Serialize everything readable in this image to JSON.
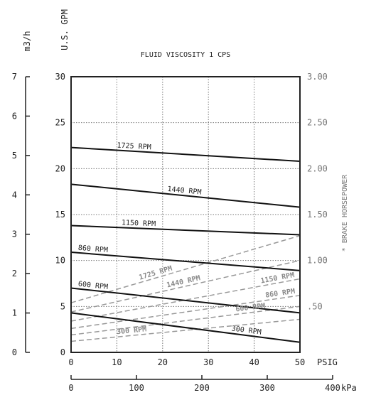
{
  "chart_data": {
    "type": "line",
    "title": "FLUID VISCOSITY 1 CPS",
    "x_primary": {
      "label": "PSIG",
      "range": [
        0,
        50
      ],
      "ticks": [
        0,
        10,
        20,
        30,
        40,
        50
      ]
    },
    "x_secondary": {
      "label": "kPa",
      "range": [
        0,
        400
      ],
      "ticks": [
        0,
        100,
        200,
        300,
        400
      ]
    },
    "y_primary": {
      "label": "U.S. GPM",
      "range": [
        0,
        30
      ],
      "ticks": [
        0,
        5,
        10,
        15,
        20,
        25,
        30
      ]
    },
    "y_secondary_left": {
      "label": "m3/h",
      "range": [
        0,
        7
      ],
      "ticks": [
        0,
        1,
        2,
        3,
        4,
        5,
        6,
        7
      ]
    },
    "y_secondary_right": {
      "label": "* BRAKE HORSEPOWER",
      "range": [
        0,
        3.0
      ],
      "ticks": [
        ".50",
        "1.00",
        "1.50",
        "2.00",
        "2.50",
        "3.00"
      ],
      "tick_values": [
        0.5,
        1.0,
        1.5,
        2.0,
        2.5,
        3.0
      ]
    },
    "grid": true,
    "series": [
      {
        "name": "1725 RPM",
        "kind": "flow",
        "x": [
          0,
          50
        ],
        "y": [
          22.3,
          20.8
        ]
      },
      {
        "name": "1440 RPM",
        "kind": "flow",
        "x": [
          0,
          50
        ],
        "y": [
          18.3,
          15.8
        ]
      },
      {
        "name": "1150 RPM",
        "kind": "flow",
        "x": [
          0,
          50
        ],
        "y": [
          13.8,
          12.8
        ]
      },
      {
        "name": "860 RPM",
        "kind": "flow",
        "x": [
          0,
          50
        ],
        "y": [
          10.9,
          8.9
        ]
      },
      {
        "name": "600 RPM",
        "kind": "flow",
        "x": [
          0,
          50
        ],
        "y": [
          7.0,
          4.3
        ]
      },
      {
        "name": "300 RPM",
        "kind": "flow",
        "x": [
          0,
          50
        ],
        "y": [
          4.3,
          1.1
        ]
      },
      {
        "name": "1725 RPM",
        "kind": "horsepower",
        "x": [
          0,
          50
        ],
        "y": [
          0.54,
          1.27
        ]
      },
      {
        "name": "1440 RPM",
        "kind": "horsepower",
        "x": [
          0,
          50
        ],
        "y": [
          0.44,
          1.0
        ]
      },
      {
        "name": "1150 RPM",
        "kind": "horsepower",
        "x": [
          0,
          50
        ],
        "y": [
          0.34,
          0.8
        ]
      },
      {
        "name": "860 RPM",
        "kind": "horsepower",
        "x": [
          0,
          50
        ],
        "y": [
          0.26,
          0.62
        ]
      },
      {
        "name": "600 RPM",
        "kind": "horsepower",
        "x": [
          0,
          50
        ],
        "y": [
          0.19,
          0.5
        ]
      },
      {
        "name": "300 RPM",
        "kind": "horsepower",
        "x": [
          0,
          50
        ],
        "y": [
          0.12,
          0.36
        ]
      }
    ]
  }
}
